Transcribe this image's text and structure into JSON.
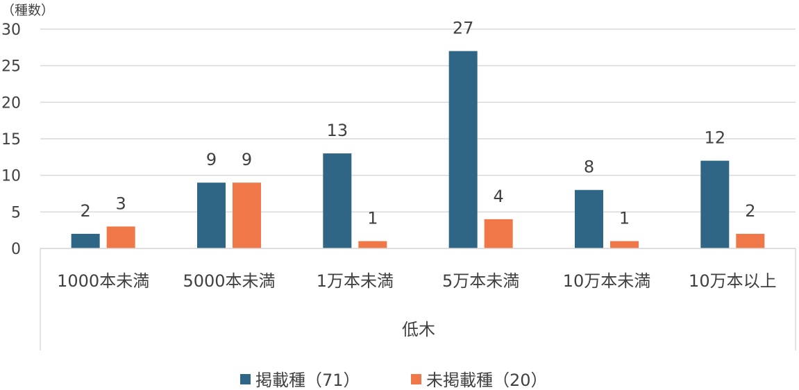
{
  "chart_data": {
    "type": "bar",
    "ylabel": "（種数）",
    "group_label": "低木",
    "categories": [
      "1000本未満",
      "5000本未満",
      "1万本未満",
      "5万本未満",
      "10万本未満",
      "10万本以上"
    ],
    "series": [
      {
        "name": "掲載種（71）",
        "color": "#2f6585",
        "values": [
          2,
          9,
          13,
          27,
          8,
          12
        ]
      },
      {
        "name": "未掲載種（20）",
        "color": "#f07848",
        "values": [
          3,
          9,
          1,
          4,
          1,
          2
        ]
      }
    ],
    "ylim": [
      0,
      30
    ],
    "yticks": [
      "0",
      "5",
      "10",
      "15",
      "20",
      "25",
      "30"
    ],
    "grid": true,
    "legend": "bottom"
  }
}
